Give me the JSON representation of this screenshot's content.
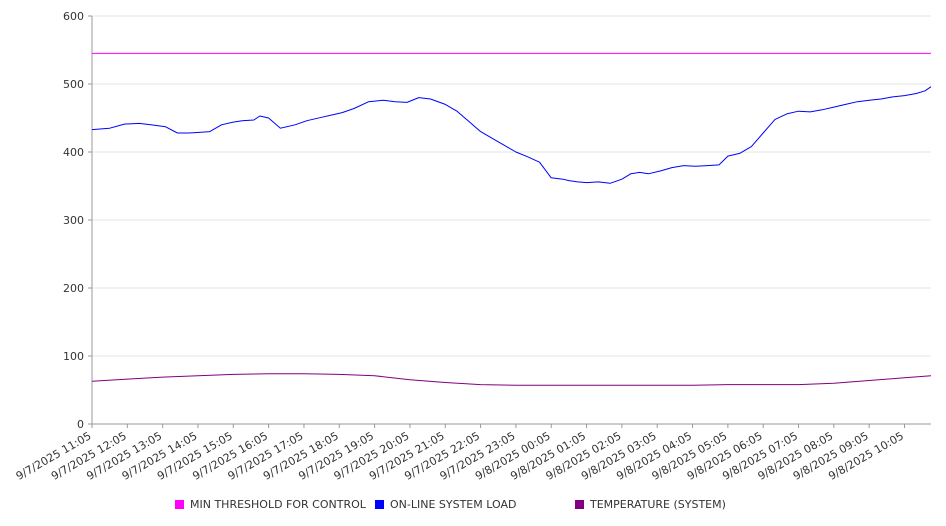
{
  "chart_data": {
    "type": "line",
    "title": "",
    "xlabel": "",
    "ylabel": "",
    "ylim": [
      0,
      600
    ],
    "yticks": [
      0,
      100,
      200,
      300,
      400,
      500,
      600
    ],
    "grid": true,
    "legend_placement": "bottom",
    "categories": [
      "9/7/2025 11:05",
      "9/7/2025 12:05",
      "9/7/2025 13:05",
      "9/7/2025 14:05",
      "9/7/2025 15:05",
      "9/7/2025 16:05",
      "9/7/2025 17:05",
      "9/7/2025 18:05",
      "9/7/2025 19:05",
      "9/7/2025 20:05",
      "9/7/2025 21:05",
      "9/7/2025 22:05",
      "9/7/2025 23:05",
      "9/8/2025 00:05",
      "9/8/2025 01:05",
      "9/8/2025 02:05",
      "9/8/2025 03:05",
      "9/8/2025 04:05",
      "9/8/2025 05:05",
      "9/8/2025 06:05",
      "9/8/2025 07:05",
      "9/8/2025 08:05",
      "9/8/2025 09:05",
      "9/8/2025 10:05"
    ],
    "x_start": "9/7/2025 11:05",
    "x_end": "9/8/2025 10:50",
    "series": [
      {
        "name": "MIN THRESHOLD FOR CONTROL",
        "color": "#ff00ff",
        "x": [
          "9/7/2025 11:05",
          "9/8/2025 10:50"
        ],
        "y": [
          545,
          545
        ]
      },
      {
        "name": "ON-LINE SYSTEM LOAD",
        "color": "#0000ff",
        "x": [
          "9/7/2025 11:05",
          "9/7/2025 11:35",
          "9/7/2025 12:00",
          "9/7/2025 12:25",
          "9/7/2025 12:45",
          "9/7/2025 13:10",
          "9/7/2025 13:30",
          "9/7/2025 13:50",
          "9/7/2025 14:10",
          "9/7/2025 14:25",
          "9/7/2025 14:45",
          "9/7/2025 15:05",
          "9/7/2025 15:20",
          "9/7/2025 15:40",
          "9/7/2025 15:50",
          "9/7/2025 16:05",
          "9/7/2025 16:25",
          "9/7/2025 16:50",
          "9/7/2025 17:10",
          "9/7/2025 17:35",
          "9/7/2025 17:55",
          "9/7/2025 18:10",
          "9/7/2025 18:30",
          "9/7/2025 18:55",
          "9/7/2025 19:20",
          "9/7/2025 19:40",
          "9/7/2025 20:00",
          "9/7/2025 20:20",
          "9/7/2025 20:40",
          "9/7/2025 21:05",
          "9/7/2025 21:25",
          "9/7/2025 21:45",
          "9/7/2025 22:05",
          "9/7/2025 22:25",
          "9/7/2025 22:45",
          "9/7/2025 23:05",
          "9/7/2025 23:25",
          "9/7/2025 23:45",
          "9/8/2025 00:05",
          "9/8/2025 00:25",
          "9/8/2025 00:35",
          "9/8/2025 00:50",
          "9/8/2025 01:05",
          "9/8/2025 01:25",
          "9/8/2025 01:45",
          "9/8/2025 02:05",
          "9/8/2025 02:20",
          "9/8/2025 02:35",
          "9/8/2025 02:50",
          "9/8/2025 03:10",
          "9/8/2025 03:30",
          "9/8/2025 03:50",
          "9/8/2025 04:10",
          "9/8/2025 04:30",
          "9/8/2025 04:50",
          "9/8/2025 05:05",
          "9/8/2025 05:25",
          "9/8/2025 05:45",
          "9/8/2025 06:05",
          "9/8/2025 06:25",
          "9/8/2025 06:45",
          "9/8/2025 07:05",
          "9/8/2025 07:25",
          "9/8/2025 07:45",
          "9/8/2025 08:05",
          "9/8/2025 08:25",
          "9/8/2025 08:45",
          "9/8/2025 09:05",
          "9/8/2025 09:25",
          "9/8/2025 09:45",
          "9/8/2025 10:05",
          "9/8/2025 10:25",
          "9/8/2025 10:40",
          "9/8/2025 10:50"
        ],
        "y": [
          433,
          435,
          441,
          442,
          440,
          437,
          428,
          428,
          429,
          430,
          440,
          444,
          446,
          447,
          453,
          450,
          435,
          440,
          446,
          451,
          455,
          458,
          464,
          474,
          476,
          474,
          473,
          480,
          478,
          470,
          460,
          445,
          430,
          420,
          410,
          400,
          393,
          385,
          362,
          360,
          358,
          356,
          355,
          356,
          354,
          360,
          368,
          370,
          368,
          372,
          377,
          380,
          379,
          380,
          381,
          394,
          398,
          408,
          428,
          448,
          456,
          460,
          459,
          462,
          466,
          470,
          474,
          476,
          478,
          481,
          483,
          486,
          490,
          496
        ]
      },
      {
        "name": "TEMPERATURE (SYSTEM)",
        "color": "#800080",
        "x": [
          "9/7/2025 11:05",
          "9/7/2025 12:05",
          "9/7/2025 13:05",
          "9/7/2025 14:05",
          "9/7/2025 15:05",
          "9/7/2025 16:05",
          "9/7/2025 17:05",
          "9/7/2025 18:05",
          "9/7/2025 19:05",
          "9/7/2025 20:05",
          "9/7/2025 21:05",
          "9/7/2025 22:05",
          "9/7/2025 23:05",
          "9/8/2025 00:05",
          "9/8/2025 01:05",
          "9/8/2025 02:05",
          "9/8/2025 03:05",
          "9/8/2025 04:05",
          "9/8/2025 05:05",
          "9/8/2025 06:05",
          "9/8/2025 07:05",
          "9/8/2025 08:05",
          "9/8/2025 09:05",
          "9/8/2025 10:05",
          "9/8/2025 10:50"
        ],
        "y": [
          63,
          66,
          69,
          71,
          73,
          74,
          74,
          73,
          71,
          65,
          61,
          58,
          57,
          57,
          57,
          57,
          57,
          57,
          58,
          58,
          58,
          60,
          64,
          68,
          71
        ]
      }
    ]
  }
}
